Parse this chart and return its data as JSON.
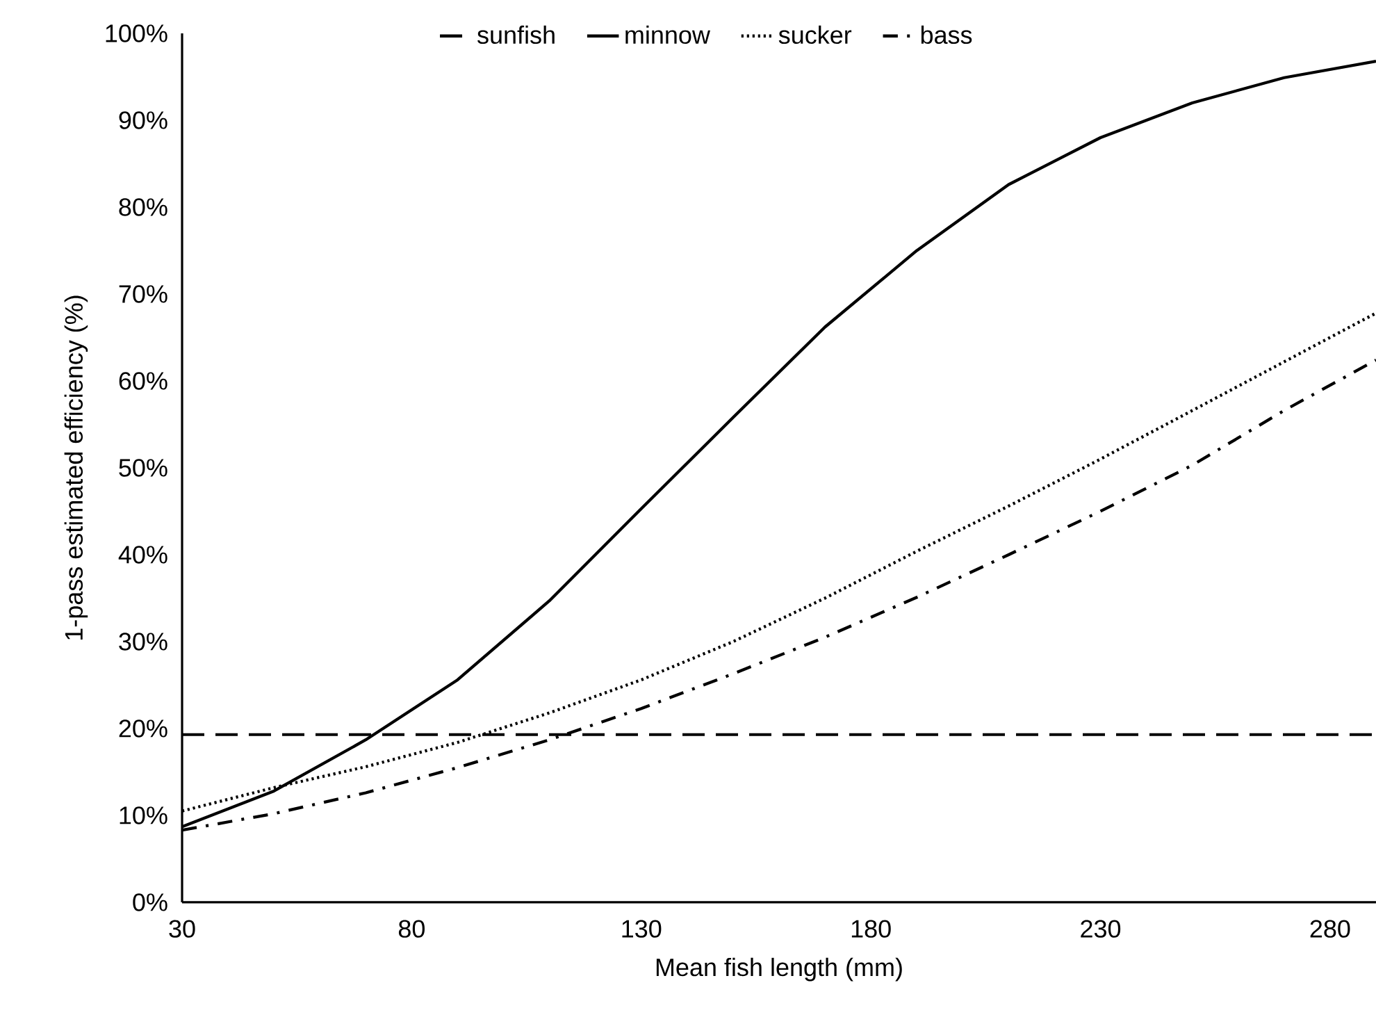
{
  "chart_data": {
    "type": "line",
    "xlabel": "Mean fish length (mm)",
    "ylabel": "1-pass estimated efficiency (%)",
    "xlim": [
      30,
      290
    ],
    "xticks": [
      30,
      80,
      130,
      180,
      230,
      280
    ],
    "ylim": [
      0,
      100
    ],
    "yticks": [
      {
        "value": 0,
        "label": "0%"
      },
      {
        "value": 10,
        "label": "10%"
      },
      {
        "value": 20,
        "label": "20%"
      },
      {
        "value": 30,
        "label": "30%"
      },
      {
        "value": 40,
        "label": "40%"
      },
      {
        "value": 50,
        "label": "50%"
      },
      {
        "value": 60,
        "label": "60%"
      },
      {
        "value": 70,
        "label": "70%"
      },
      {
        "value": 80,
        "label": "80%"
      },
      {
        "value": 90,
        "label": "90%"
      },
      {
        "value": 100,
        "label": "100%"
      }
    ],
    "legend": "top",
    "grid": false,
    "marker": "none",
    "series": [
      {
        "name": "sunfish",
        "color": "#000000",
        "line_style": "dashed",
        "x": [
          30,
          290
        ],
        "values": [
          19.3,
          19.3
        ]
      },
      {
        "name": "minnow",
        "color": "#000000",
        "line_style": "solid",
        "x": [
          30,
          50,
          70,
          90,
          110,
          130,
          150,
          170,
          190,
          210,
          230,
          250,
          270,
          290
        ],
        "values": [
          8.7,
          12.8,
          18.7,
          25.6,
          34.7,
          45.3,
          55.8,
          66.2,
          75.0,
          82.6,
          88.0,
          92.0,
          94.9,
          96.8
        ]
      },
      {
        "name": "sucker",
        "color": "#000000",
        "line_style": "dotted",
        "x": [
          30,
          50,
          70,
          90,
          110,
          130,
          150,
          170,
          190,
          210,
          230,
          250,
          270,
          290
        ],
        "values": [
          10.5,
          13.2,
          15.6,
          18.4,
          21.8,
          25.6,
          30.0,
          35.0,
          40.4,
          45.6,
          51.0,
          56.6,
          62.2,
          67.8
        ]
      },
      {
        "name": "bass",
        "color": "#000000",
        "line_style": "dashdot",
        "x": [
          30,
          50,
          70,
          90,
          110,
          130,
          150,
          170,
          190,
          210,
          230,
          250,
          270,
          290
        ],
        "values": [
          8.3,
          10.2,
          12.6,
          15.5,
          18.7,
          22.3,
          26.3,
          30.5,
          35.1,
          40.0,
          45.0,
          50.3,
          56.6,
          62.4
        ]
      }
    ]
  }
}
